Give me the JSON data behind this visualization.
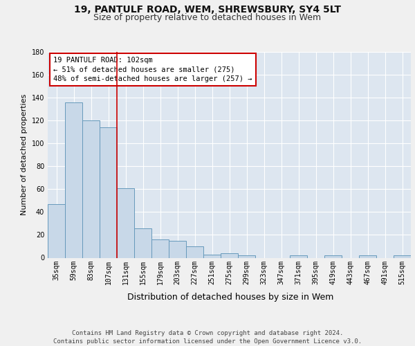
{
  "title_line1": "19, PANTULF ROAD, WEM, SHREWSBURY, SY4 5LT",
  "title_line2": "Size of property relative to detached houses in Wem",
  "xlabel": "Distribution of detached houses by size in Wem",
  "ylabel": "Number of detached properties",
  "categories": [
    "35sqm",
    "59sqm",
    "83sqm",
    "107sqm",
    "131sqm",
    "155sqm",
    "179sqm",
    "203sqm",
    "227sqm",
    "251sqm",
    "275sqm",
    "299sqm",
    "323sqm",
    "347sqm",
    "371sqm",
    "395sqm",
    "419sqm",
    "443sqm",
    "467sqm",
    "491sqm",
    "515sqm"
  ],
  "values": [
    47,
    136,
    120,
    114,
    61,
    26,
    16,
    15,
    10,
    3,
    4,
    2,
    0,
    0,
    2,
    0,
    2,
    0,
    2,
    0,
    2
  ],
  "bar_color": "#c8d8e8",
  "bar_edge_color": "#6699bb",
  "vline_x_index": 3,
  "vline_color": "#cc0000",
  "ylim": [
    0,
    180
  ],
  "yticks": [
    0,
    20,
    40,
    60,
    80,
    100,
    120,
    140,
    160,
    180
  ],
  "annotation_text": "19 PANTULF ROAD: 102sqm\n← 51% of detached houses are smaller (275)\n48% of semi-detached houses are larger (257) →",
  "annotation_box_color": "#ffffff",
  "annotation_box_edge_color": "#cc0000",
  "background_color": "#dde6f0",
  "fig_background_color": "#f0f0f0",
  "footer_text": "Contains HM Land Registry data © Crown copyright and database right 2024.\nContains public sector information licensed under the Open Government Licence v3.0.",
  "title_fontsize": 10,
  "subtitle_fontsize": 9,
  "xlabel_fontsize": 9,
  "ylabel_fontsize": 8,
  "tick_fontsize": 7,
  "annotation_fontsize": 7.5,
  "footer_fontsize": 6.5
}
